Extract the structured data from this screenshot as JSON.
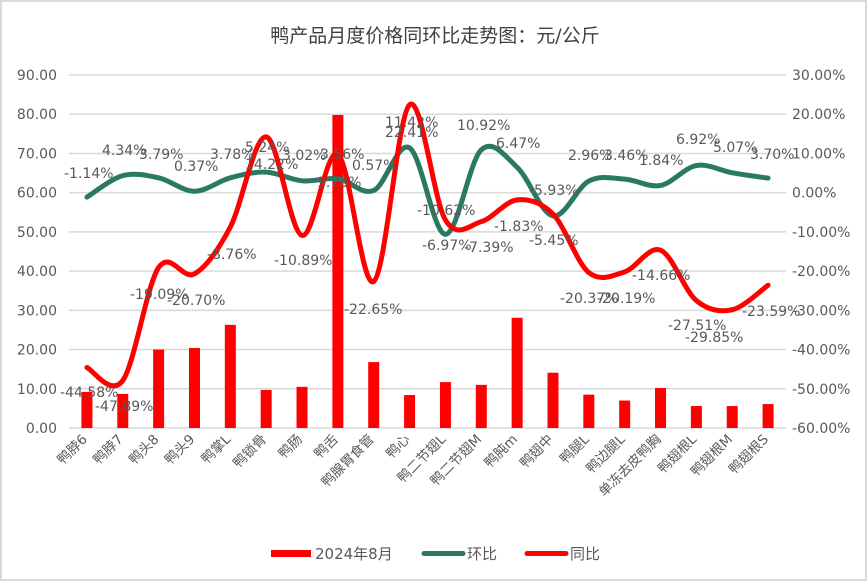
{
  "chart_data": {
    "type": "bar+line",
    "title": "鸭产品月度价格同环比走势图：元/公斤",
    "categories": [
      "鸭脖6",
      "鸭脖7",
      "鸭头8",
      "鸭头9",
      "鸭掌L",
      "鸭锁骨",
      "鸭肠",
      "鸭舌",
      "鸭腺胃食管",
      "鸭心",
      "鸭二节翅L",
      "鸭二节翅M",
      "鸭肫m",
      "鸭翅中",
      "鸭腿L",
      "鸭边腿L",
      "单冻去皮鸭胸",
      "鸭翅根L",
      "鸭翅根M",
      "鸭翅根S"
    ],
    "series": [
      {
        "name": "2024年8月",
        "type": "bar",
        "axis": "left",
        "color": "#FF0000",
        "values": [
          9.2,
          8.7,
          20.0,
          20.4,
          26.3,
          9.7,
          10.5,
          79.8,
          16.8,
          8.4,
          11.7,
          11.0,
          28.1,
          14.1,
          8.5,
          7.0,
          10.2,
          5.6,
          5.6,
          6.1
        ]
      },
      {
        "name": "环比",
        "type": "line",
        "axis": "right",
        "color": "#2A7A63",
        "values": [
          -1.14,
          4.34,
          3.79,
          0.37,
          3.78,
          5.24,
          3.02,
          3.56,
          0.57,
          11.42,
          -10.62,
          10.92,
          6.47,
          -5.93,
          2.96,
          3.46,
          1.84,
          6.92,
          5.07,
          3.7
        ],
        "labels": [
          "-1.14%",
          "4.34%",
          "3.79%",
          "0.37%",
          "3.78%",
          "5.24%",
          "3.02%",
          "3.56%",
          "0.57%",
          "11.42%",
          "-10.62%",
          "10.92%",
          "6.47%",
          "-5.93%",
          "2.96%",
          "3.46%",
          "1.84%",
          "6.92%",
          "5.07%",
          "3.70%"
        ]
      },
      {
        "name": "同比",
        "type": "line",
        "axis": "right",
        "color": "#FF0000",
        "values": [
          -44.58,
          -47.89,
          -19.09,
          -20.7,
          -8.76,
          14.22,
          -10.89,
          9.78,
          -22.65,
          22.41,
          -6.97,
          -7.39,
          -1.83,
          -5.45,
          -20.37,
          -20.19,
          -14.66,
          -27.51,
          -29.85,
          -23.59
        ],
        "labels": [
          "-44.58%",
          "-47.89%",
          "-19.09%",
          "-20.70%",
          "-8.76%",
          "14.22%",
          "-10.89%",
          "9.78%",
          "-22.65%",
          "22.41%",
          "-6.97%",
          "-7.39%",
          "-1.83%",
          "-5.45%",
          "-20.37%",
          "-20.19%",
          "-14.66%",
          "-27.51%",
          "-29.85%",
          "-23.59%"
        ]
      }
    ],
    "y_left": {
      "range": [
        0,
        90
      ],
      "ticks": [
        "90.00",
        "80.00",
        "70.00",
        "60.00",
        "50.00",
        "40.00",
        "30.00",
        "20.00",
        "10.00",
        "0.00"
      ]
    },
    "y_right": {
      "range": [
        -60,
        30
      ],
      "ticks": [
        "30.00%",
        "20.00%",
        "10.00%",
        "0.00%",
        "-10.00%",
        "-20.00%",
        "-30.00%",
        "-40.00%",
        "-50.00%",
        "-60.00%"
      ]
    },
    "xlabel": "",
    "ylabel": "",
    "grid": true,
    "legend_position": "bottom"
  }
}
